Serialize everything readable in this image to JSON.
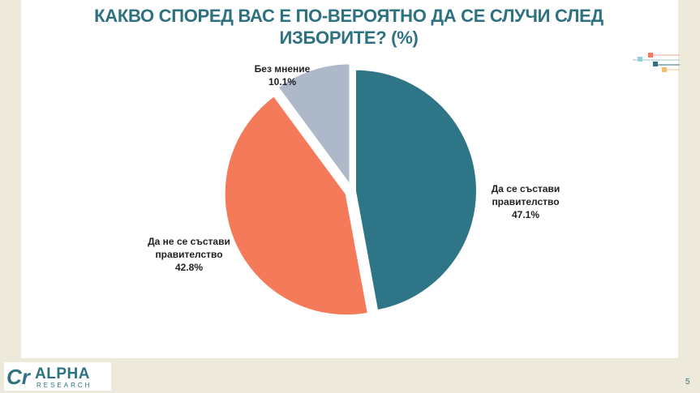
{
  "title": {
    "line1": "КАКВО СПОРЕД ВАС Е ПО-ВЕРОЯТНО ДА СЕ СЛУЧИ СЛЕД",
    "line2": "ИЗБОРИТЕ? (%)"
  },
  "chart_data": {
    "type": "pie",
    "title": "КАКВО СПОРЕД ВАС Е ПО-ВЕРОЯТНО ДА СЕ СЛУЧИ СЛЕД ИЗБОРИТЕ? (%)",
    "unit": "%",
    "slices": [
      {
        "label_line1": "Да се състави",
        "label_line2": "правителство",
        "value": 47.1,
        "value_text": "47.1%",
        "color": "#2e7587"
      },
      {
        "label_line1": "Да не се състави",
        "label_line2": "правителство",
        "value": 42.8,
        "value_text": "42.8%",
        "color": "#f47a5a"
      },
      {
        "label_line1": "Без мнение",
        "label_line2": "",
        "value": 10.1,
        "value_text": "10.1%",
        "color": "#adb9c9"
      }
    ]
  },
  "logo": {
    "mark": "Cr",
    "text": "ALPHA",
    "sub": "RESEARCH"
  },
  "page_number": "5",
  "colors": {
    "title": "#2e7180",
    "background_band": "#eeeadb"
  }
}
